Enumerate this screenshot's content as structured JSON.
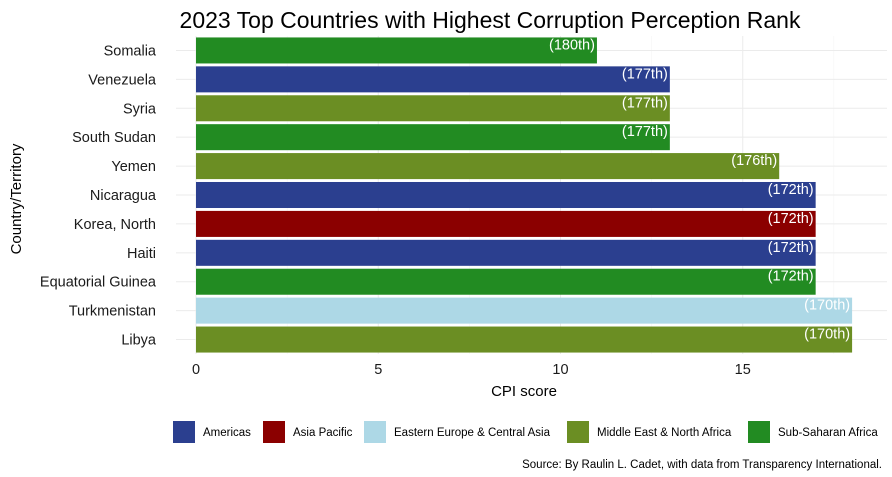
{
  "chart_data": {
    "type": "bar",
    "orientation": "horizontal",
    "title": "2023 Top Countries with Highest Corruption Perception Rank",
    "xlabel": "CPI score",
    "ylabel": "Country/Territory",
    "xlim": [
      0,
      18
    ],
    "xticks": [
      0,
      5,
      10,
      15
    ],
    "grid": true,
    "legend_position": "bottom",
    "caption": "Source: By Raulin L. Cadet, with data from Transparency International.",
    "legend": [
      {
        "name": "Americas",
        "color": "#2B3F8F"
      },
      {
        "name": "Asia Pacific",
        "color": "#8B0000"
      },
      {
        "name": "Eastern Europe & Central Asia",
        "color": "#ADD8E6"
      },
      {
        "name": "Middle East & North Africa",
        "color": "#6B8E23"
      },
      {
        "name": "Sub-Saharan Africa",
        "color": "#228B22"
      }
    ],
    "bars": [
      {
        "country": "Somalia",
        "value": 11,
        "rank_label": "(180th)",
        "region": "Sub-Saharan Africa"
      },
      {
        "country": "Venezuela",
        "value": 13,
        "rank_label": "(177th)",
        "region": "Americas"
      },
      {
        "country": "Syria",
        "value": 13,
        "rank_label": "(177th)",
        "region": "Middle East & North Africa"
      },
      {
        "country": "South Sudan",
        "value": 13,
        "rank_label": "(177th)",
        "region": "Sub-Saharan Africa"
      },
      {
        "country": "Yemen",
        "value": 16,
        "rank_label": "(176th)",
        "region": "Middle East & North Africa"
      },
      {
        "country": "Nicaragua",
        "value": 17,
        "rank_label": "(172th)",
        "region": "Americas"
      },
      {
        "country": "Korea, North",
        "value": 17,
        "rank_label": "(172th)",
        "region": "Asia Pacific"
      },
      {
        "country": "Haiti",
        "value": 17,
        "rank_label": "(172th)",
        "region": "Americas"
      },
      {
        "country": "Equatorial Guinea",
        "value": 17,
        "rank_label": "(172th)",
        "region": "Sub-Saharan Africa"
      },
      {
        "country": "Turkmenistan",
        "value": 18,
        "rank_label": "(170th)",
        "region": "Eastern Europe & Central Asia"
      },
      {
        "country": "Libya",
        "value": 18,
        "rank_label": "(170th)",
        "region": "Middle East & North Africa"
      }
    ]
  }
}
